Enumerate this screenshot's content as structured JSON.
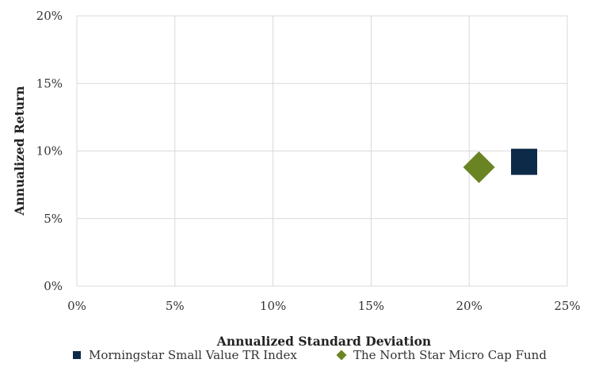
{
  "chart_data": {
    "type": "scatter",
    "xlabel": "Annualized Standard Deviation",
    "ylabel": "Annualized Return",
    "xlim": [
      0,
      25
    ],
    "ylim": [
      0,
      20
    ],
    "x_ticks": [
      "0%",
      "5%",
      "10%",
      "15%",
      "20%",
      "25%"
    ],
    "y_ticks": [
      "0%",
      "5%",
      "10%",
      "15%",
      "20%"
    ],
    "grid": true,
    "legend_position": "bottom",
    "series": [
      {
        "name": "Morningstar Small Value TR Index",
        "x": 22.8,
        "y": 9.2,
        "marker": "square",
        "color": "#0d2a48"
      },
      {
        "name": "The North Star Micro Cap Fund",
        "x": 20.5,
        "y": 8.8,
        "marker": "diamond",
        "color": "#6b8423"
      }
    ]
  }
}
